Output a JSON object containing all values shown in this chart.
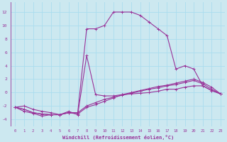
{
  "xlabel": "Windchill (Refroidissement éolien,°C)",
  "bg_color": "#cce8f0",
  "grid_color": "#aaddee",
  "line_color": "#993399",
  "xlim": [
    -0.5,
    23.5
  ],
  "ylim": [
    -5,
    13.5
  ],
  "xticks": [
    0,
    1,
    2,
    3,
    4,
    5,
    6,
    7,
    8,
    9,
    10,
    11,
    12,
    13,
    14,
    15,
    16,
    17,
    18,
    19,
    20,
    21,
    22,
    23
  ],
  "yticks": [
    -4,
    -2,
    0,
    2,
    4,
    6,
    8,
    10,
    12
  ],
  "series": [
    {
      "x": [
        0,
        1,
        2,
        3,
        4,
        5,
        6,
        7,
        8,
        9,
        10,
        11,
        12,
        13,
        14,
        15,
        16,
        17,
        18,
        19,
        20,
        21,
        22,
        23
      ],
      "y": [
        -2.2,
        -2.5,
        -3.0,
        -3.2,
        -3.3,
        -3.3,
        -3.0,
        -3.0,
        9.5,
        9.5,
        10.0,
        12.0,
        12.0,
        12.0,
        11.5,
        10.5,
        9.5,
        8.5,
        3.5,
        4.0,
        3.5,
        1.0,
        0.3,
        -0.2
      ]
    },
    {
      "x": [
        0,
        1,
        2,
        3,
        4,
        5,
        6,
        7,
        8,
        9,
        10,
        11,
        12,
        13,
        14,
        15,
        16,
        17,
        18,
        19,
        20,
        21,
        22,
        23
      ],
      "y": [
        -2.2,
        -2.8,
        -3.1,
        -3.5,
        -3.3,
        -3.3,
        -2.8,
        -3.3,
        5.5,
        -0.3,
        -0.5,
        -0.5,
        -0.3,
        -0.2,
        -0.1,
        0.0,
        0.2,
        0.5,
        0.5,
        0.8,
        1.0,
        1.0,
        0.3,
        -0.2
      ]
    },
    {
      "x": [
        0,
        1,
        2,
        3,
        4,
        5,
        6,
        7,
        8,
        9,
        10,
        11,
        12,
        13,
        14,
        15,
        16,
        17,
        18,
        19,
        20,
        21,
        22,
        23
      ],
      "y": [
        -2.2,
        -2.5,
        -3.0,
        -3.2,
        -3.3,
        -3.3,
        -3.0,
        -3.0,
        -2.0,
        -1.5,
        -1.0,
        -0.7,
        -0.4,
        -0.1,
        0.2,
        0.5,
        0.7,
        1.0,
        1.2,
        1.5,
        1.8,
        1.3,
        0.5,
        -0.2
      ]
    },
    {
      "x": [
        0,
        1,
        2,
        3,
        4,
        5,
        6,
        7,
        8,
        9,
        10,
        11,
        12,
        13,
        14,
        15,
        16,
        17,
        18,
        19,
        20,
        21,
        22,
        23
      ],
      "y": [
        -2.2,
        -2.0,
        -2.5,
        -2.8,
        -3.0,
        -3.3,
        -3.0,
        -3.2,
        -2.2,
        -1.8,
        -1.3,
        -0.8,
        -0.3,
        0.0,
        0.3,
        0.6,
        0.9,
        1.1,
        1.4,
        1.7,
        2.0,
        1.5,
        0.8,
        -0.2
      ]
    }
  ]
}
